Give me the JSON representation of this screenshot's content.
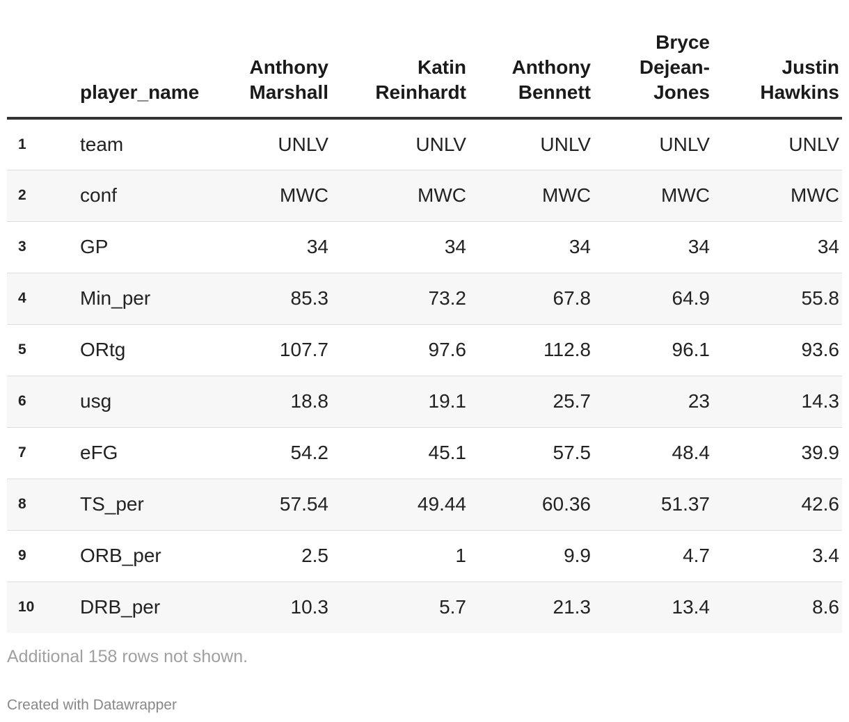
{
  "chart_data": {
    "type": "table",
    "columns": [
      {
        "key": "idx",
        "label": ""
      },
      {
        "key": "player_name",
        "label": "player_name"
      },
      {
        "key": "p1",
        "label_lines": [
          "Anthony",
          "Marshall"
        ]
      },
      {
        "key": "p2",
        "label_lines": [
          "Katin",
          "Reinhardt"
        ]
      },
      {
        "key": "p3",
        "label_lines": [
          "Anthony",
          "Bennett"
        ]
      },
      {
        "key": "p4",
        "label_lines": [
          "Bryce",
          "Dejean-",
          "Jones"
        ]
      },
      {
        "key": "p5",
        "label_lines": [
          "Justin",
          "Hawkins"
        ]
      }
    ],
    "rows": [
      [
        "1",
        "team",
        "UNLV",
        "UNLV",
        "UNLV",
        "UNLV",
        "UNLV"
      ],
      [
        "2",
        "conf",
        "MWC",
        "MWC",
        "MWC",
        "MWC",
        "MWC"
      ],
      [
        "3",
        "GP",
        "34",
        "34",
        "34",
        "34",
        "34"
      ],
      [
        "4",
        "Min_per",
        "85.3",
        "73.2",
        "67.8",
        "64.9",
        "55.8"
      ],
      [
        "5",
        "ORtg",
        "107.7",
        "97.6",
        "112.8",
        "96.1",
        "93.6"
      ],
      [
        "6",
        "usg",
        "18.8",
        "19.1",
        "25.7",
        "23",
        "14.3"
      ],
      [
        "7",
        "eFG",
        "54.2",
        "45.1",
        "57.5",
        "48.4",
        "39.9"
      ],
      [
        "8",
        "TS_per",
        "57.54",
        "49.44",
        "60.36",
        "51.37",
        "42.6"
      ],
      [
        "9",
        "ORB_per",
        "2.5",
        "1",
        "9.9",
        "4.7",
        "3.4"
      ],
      [
        "10",
        "DRB_per",
        "10.3",
        "5.7",
        "21.3",
        "13.4",
        "8.6"
      ]
    ]
  },
  "notes": "Additional 158 rows not shown.",
  "footer": "Created with Datawrapper",
  "colors": {
    "header_rule": "#333333",
    "row_alt_bg": "#f7f7f7",
    "row_divider": "#dddddd",
    "notes_text": "#a0a0a0"
  }
}
